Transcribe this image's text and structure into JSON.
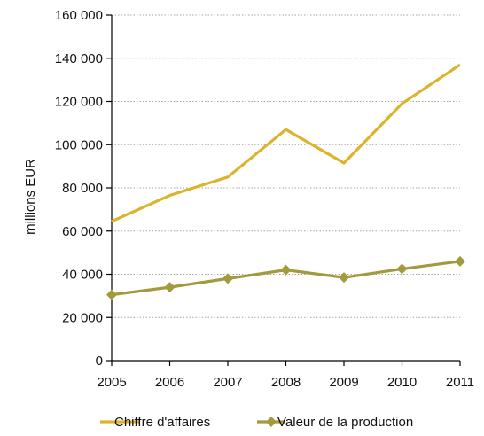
{
  "chart_data": {
    "type": "line",
    "x": [
      "2005",
      "2006",
      "2007",
      "2008",
      "2009",
      "2010",
      "2011"
    ],
    "ylabel": "millions EUR",
    "ylim": [
      0,
      160000
    ],
    "yticks": [
      0,
      20000,
      40000,
      60000,
      80000,
      100000,
      120000,
      140000,
      160000
    ],
    "ytick_labels": [
      "0",
      "20 000",
      "40 000",
      "60 000",
      "80 000",
      "100 000",
      "120 000",
      "140 000",
      "160 000"
    ],
    "grid": true,
    "legend_position": "bottom",
    "series": [
      {
        "name": "Chiffre d'affaires",
        "values": [
          64500,
          76500,
          85000,
          107000,
          91500,
          119000,
          137000
        ],
        "color": "#dcb42c",
        "marker": "none"
      },
      {
        "name": "Valeur de la production",
        "values": [
          30500,
          34000,
          38000,
          42000,
          38500,
          42500,
          46000
        ],
        "color": "#a29a3c",
        "marker": "diamond"
      }
    ]
  }
}
